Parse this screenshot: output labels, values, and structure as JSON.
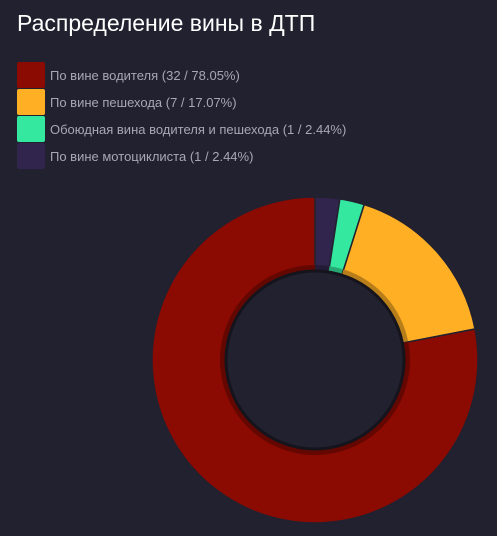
{
  "chart_data": {
    "type": "pie",
    "title": "Распределение вины в ДТП",
    "legend_position": "top-left",
    "slices": [
      {
        "label": "По вине водителя (32 / 78.05%)",
        "value": 32,
        "percent": 78.05,
        "color": "#8b0a02"
      },
      {
        "label": "По вине пешехода (7 / 17.07%)",
        "value": 7,
        "percent": 17.07,
        "color": "#ffaf24"
      },
      {
        "label": "Обоюдная вина водителя и пешехода (1 / 2.44%)",
        "value": 1,
        "percent": 2.44,
        "color": "#35e8a0"
      },
      {
        "label": "По вине мотоциклиста (1 / 2.44%)",
        "value": 1,
        "percent": 2.44,
        "color": "#32254d"
      }
    ],
    "draw_order": [
      3,
      2,
      1,
      0
    ]
  }
}
